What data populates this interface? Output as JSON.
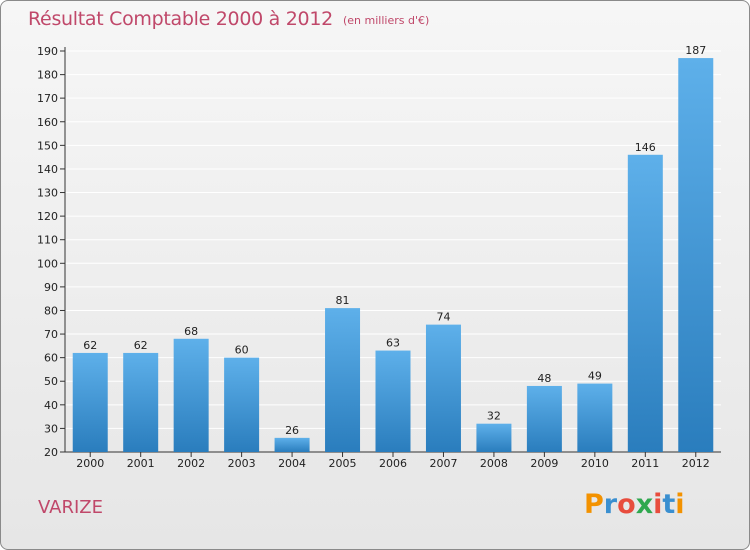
{
  "header": {
    "title": "Résultat Comptable 2000 à 2012",
    "unit_note": "(en milliers d'€)"
  },
  "footer": {
    "commune": "VARIZE",
    "logo_text": "Proxiti",
    "logo_letters": [
      {
        "char": "P",
        "color": "#f39200"
      },
      {
        "char": "r",
        "color": "#3a8fd0"
      },
      {
        "char": "o",
        "color": "#e84c3d"
      },
      {
        "char": "x",
        "color": "#2fa84f"
      },
      {
        "char": "i",
        "color": "#e84c3d"
      },
      {
        "char": "t",
        "color": "#3a8fd0"
      },
      {
        "char": "i",
        "color": "#f39200"
      }
    ]
  },
  "colors": {
    "title": "#c0486a",
    "bar_top": "#5eb0ea",
    "bar_bottom": "#2a7dbd",
    "gridline": "#ffffff"
  },
  "chart_data": {
    "type": "bar",
    "title": "Résultat Comptable 2000 à 2012",
    "subtitle": "(en milliers d'€)",
    "xlabel": "",
    "ylabel": "",
    "categories": [
      "2000",
      "2001",
      "2002",
      "2003",
      "2004",
      "2005",
      "2006",
      "2007",
      "2008",
      "2009",
      "2010",
      "2011",
      "2012"
    ],
    "values": [
      62,
      62,
      68,
      60,
      26,
      81,
      63,
      74,
      32,
      48,
      49,
      146,
      187
    ],
    "ylim": [
      20,
      190
    ],
    "yticks": [
      20,
      30,
      40,
      50,
      60,
      70,
      80,
      90,
      100,
      110,
      120,
      130,
      140,
      150,
      160,
      170,
      180,
      190
    ],
    "grid": true,
    "data_labels": true
  }
}
